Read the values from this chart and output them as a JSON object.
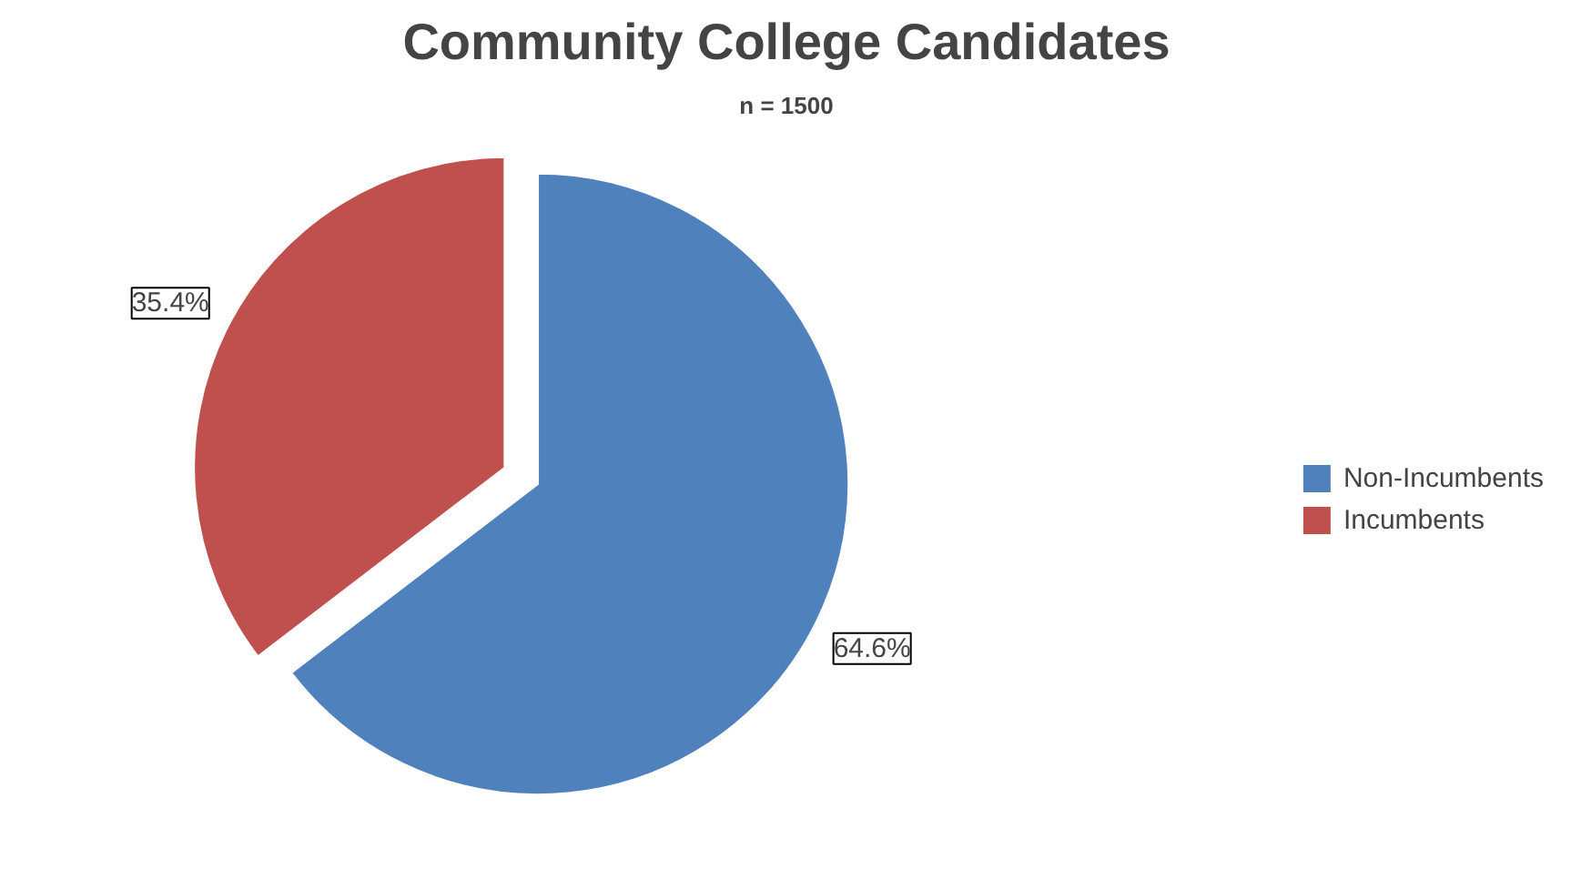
{
  "chart_data": {
    "type": "pie",
    "title": "Community College Candidates",
    "subtitle": "n = 1500",
    "categories": [
      "Non-Incumbents",
      "Incumbents"
    ],
    "values": [
      64.6,
      35.4
    ],
    "colors": [
      "#4f81bd",
      "#c0504d"
    ],
    "value_labels": [
      "64.6%",
      "35.4%"
    ],
    "legend": "right"
  }
}
